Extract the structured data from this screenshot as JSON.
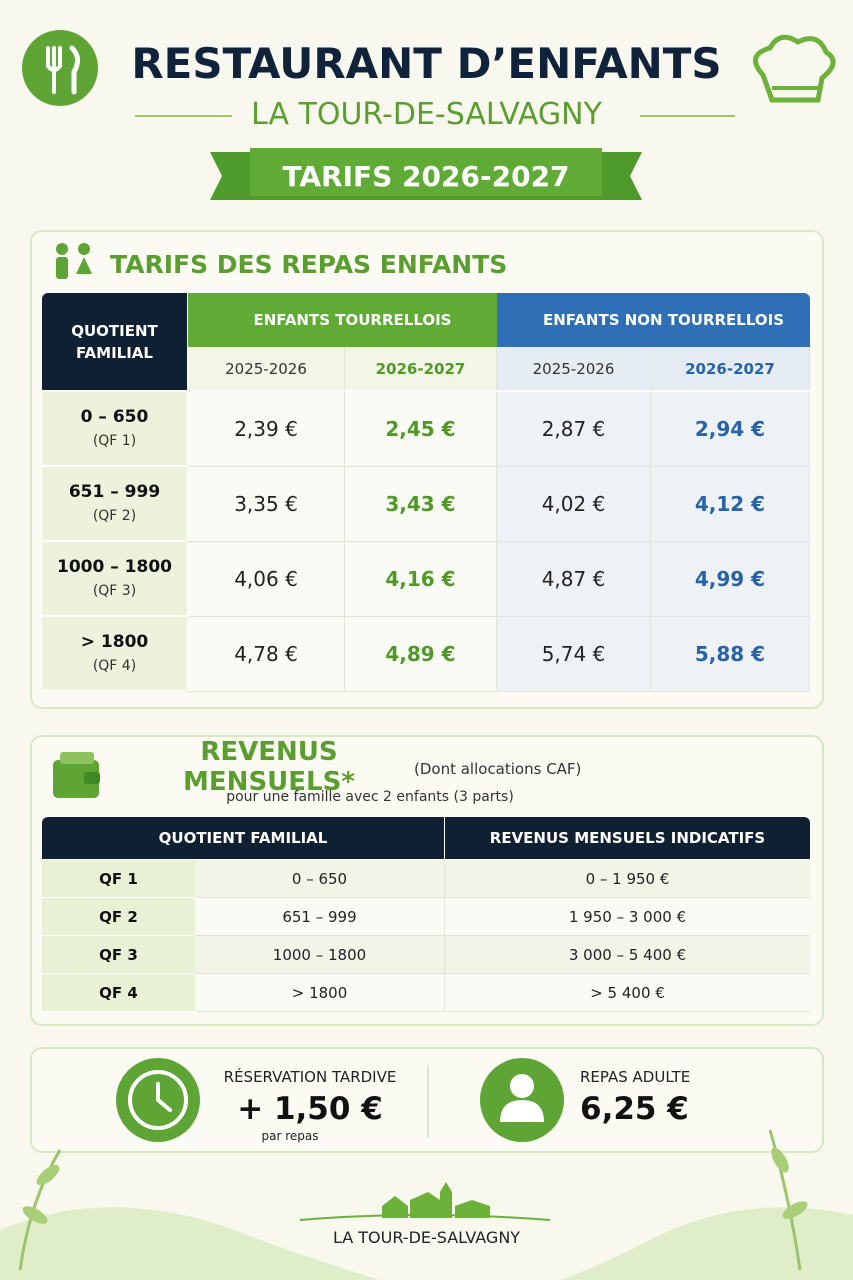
{
  "header": {
    "title": "RESTAURANT D’ENFANTS",
    "subtitle": "LA TOUR-DE-SALVAGNY",
    "banner": "TARIFS 2026-2027"
  },
  "meal_prices": {
    "title": "TARIFS DES REPAS ENFANTS",
    "qf_header": "QUOTIENT FAMILIAL",
    "groups": [
      {
        "name": "ENFANTS TOURRELLOIS",
        "years": [
          "2025-2026",
          "2026-2027"
        ]
      },
      {
        "name": "ENFANTS NON TOURRELLOIS",
        "years": [
          "2025-2026",
          "2026-2027"
        ]
      }
    ],
    "rows": [
      {
        "range": "0 – 650",
        "qf": "(QF 1)",
        "prices": [
          "2,39 €",
          "2,45 €",
          "2,87 €",
          "2,94 €"
        ]
      },
      {
        "range": "651 – 999",
        "qf": "(QF 2)",
        "prices": [
          "3,35 €",
          "3,43 €",
          "4,02 €",
          "4,12 €"
        ]
      },
      {
        "range": "1000 – 1800",
        "qf": "(QF 3)",
        "prices": [
          "4,06 €",
          "4,16 €",
          "4,87 €",
          "4,99 €"
        ]
      },
      {
        "range": "> 1800",
        "qf": "(QF 4)",
        "prices": [
          "4,78 €",
          "4,89 €",
          "5,74 €",
          "5,88 €"
        ]
      }
    ]
  },
  "income": {
    "title": "REVENUS MENSUELS*",
    "note": "(Dont allocations CAF)",
    "subtitle": "pour une famille avec 2 enfants (3 parts)",
    "headers": [
      "QUOTIENT FAMILIAL",
      "REVENUS MENSUELS INDICATIFS"
    ],
    "rows": [
      [
        "QF 1",
        "0 – 650",
        "0 – 1 950 €"
      ],
      [
        "QF 2",
        "651 – 999",
        "1 950 – 3 000 €"
      ],
      [
        "QF 3",
        "1000 – 1800",
        "3 000 – 5 400 €"
      ],
      [
        "QF 4",
        "> 1800",
        "> 5 400 €"
      ]
    ]
  },
  "extras": [
    {
      "label": "RÉSERVATION TARDIVE",
      "price": "+ 1,50 €",
      "note": "par repas"
    },
    {
      "label": "REPAS ADULTE",
      "price": "6,25 €"
    }
  ],
  "footer": {
    "town": "LA TOUR-DE-SALVAGNY"
  }
}
